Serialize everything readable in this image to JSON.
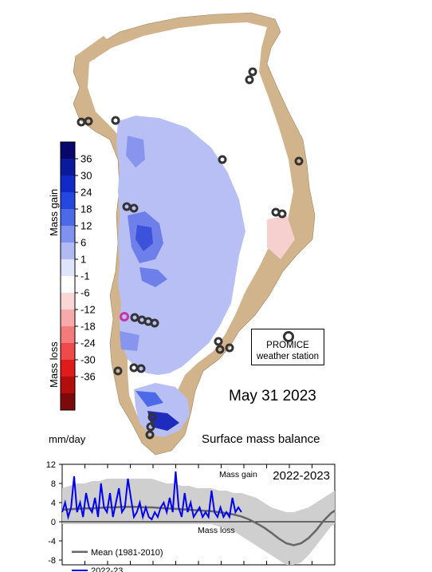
{
  "map": {
    "date": "May 31 2023",
    "title": "Surface mass balance",
    "unit": "mm/day",
    "promice_label_1": "PROMICE",
    "promice_label_2": "weather station",
    "colorbar": {
      "gain_label": "Mass gain",
      "loss_label": "Mass loss",
      "ticks": [
        "36",
        "30",
        "24",
        "18",
        "12",
        "6",
        "1",
        "-1",
        "-6",
        "-12",
        "-18",
        "-24",
        "-30",
        "-36"
      ],
      "colors": [
        "#08086b",
        "#0a1a9c",
        "#1029c8",
        "#2447e0",
        "#4c6ae8",
        "#7e92ee",
        "#b0bbf3",
        "#dfe4fb",
        "#ffffff",
        "#fbd6d6",
        "#f8a9a9",
        "#f47b7b",
        "#ee4a4a",
        "#e01b1b",
        "#b40d0d",
        "#7d0a0a"
      ]
    },
    "colors": {
      "land": "#d2b48c",
      "ice_sheet": "#b7bff4",
      "ice_white": "#ffffff",
      "station": "#333333",
      "station_highlight": "#cc33aa"
    }
  },
  "chart_data": {
    "type": "line",
    "title": "2022-2023",
    "ylim": [
      -9,
      12
    ],
    "yticks": [
      "12",
      "8",
      "4",
      "0",
      "-4",
      "-8"
    ],
    "annotations": [
      "Mass gain",
      "Mass loss"
    ],
    "series": [
      {
        "name": "Mean (1981-2010)",
        "color": "#666666",
        "x": [
          0,
          10,
          20,
          30,
          40,
          50,
          60,
          70,
          80,
          90,
          100,
          110,
          120,
          130,
          140,
          150,
          160,
          170,
          180,
          190,
          200,
          210,
          220,
          230,
          240,
          250,
          260,
          270,
          280,
          290,
          300,
          310,
          320,
          330,
          340,
          350,
          360,
          365
        ],
        "values": [
          2.5,
          2.6,
          2.7,
          2.8,
          2.8,
          2.9,
          3.0,
          3.0,
          3.1,
          3.1,
          3.1,
          3.0,
          3.0,
          2.9,
          2.8,
          2.7,
          2.6,
          2.5,
          2.4,
          2.3,
          2.2,
          2.0,
          1.8,
          1.5,
          1.1,
          0.5,
          -0.3,
          -1.2,
          -2.3,
          -3.5,
          -4.5,
          -4.9,
          -4.5,
          -3.4,
          -1.8,
          0.2,
          1.8,
          2.3
        ]
      },
      {
        "name": "2022-23",
        "color": "#0000ee",
        "x": [
          0,
          4,
          8,
          12,
          16,
          20,
          24,
          28,
          32,
          36,
          40,
          44,
          48,
          52,
          56,
          60,
          64,
          68,
          72,
          76,
          80,
          84,
          88,
          92,
          96,
          100,
          104,
          108,
          112,
          116,
          120,
          124,
          128,
          132,
          136,
          140,
          144,
          148,
          152,
          156,
          160,
          164,
          168,
          172,
          176,
          180,
          184,
          188,
          192,
          196,
          200,
          204,
          208,
          212,
          216,
          220,
          224,
          228,
          232,
          236,
          240
        ],
        "values": [
          2,
          4,
          1,
          3,
          9.5,
          2,
          4,
          1,
          6,
          3,
          2,
          5,
          1,
          8,
          3,
          2,
          6,
          1,
          4,
          7,
          2,
          3,
          9,
          5,
          1,
          2,
          4,
          1,
          3,
          1,
          0.5,
          2,
          1,
          3,
          4,
          2,
          5,
          2,
          10.5,
          3,
          1,
          6,
          2,
          4,
          1,
          2,
          3,
          1,
          2,
          1,
          6.5,
          2,
          1,
          3,
          1,
          2,
          1,
          5,
          2,
          3,
          2
        ]
      }
    ],
    "band_upper": [
      7,
      7.5,
      8,
      8,
      8.5,
      8.5,
      9,
      9,
      9,
      9,
      9,
      9,
      9,
      8.5,
      8,
      8,
      7.5,
      7.5,
      7,
      7,
      7,
      6.5,
      6.5,
      6,
      6,
      5.5,
      5,
      4,
      3,
      2.5,
      2,
      2,
      2.5,
      3,
      4,
      5,
      6,
      6.5
    ],
    "band_lower": [
      -0.5,
      -0.5,
      -0.5,
      -0.5,
      -0.5,
      -0.5,
      -0.5,
      -0.5,
      -0.5,
      -0.5,
      -0.5,
      -0.5,
      -0.5,
      -0.5,
      -0.5,
      -0.5,
      -0.5,
      -0.5,
      -0.5,
      -0.5,
      -0.5,
      -1,
      -1.5,
      -2,
      -3,
      -4,
      -5,
      -6,
      -7,
      -8,
      -9,
      -9,
      -8.5,
      -7,
      -5,
      -3,
      -1,
      -0.5
    ]
  }
}
